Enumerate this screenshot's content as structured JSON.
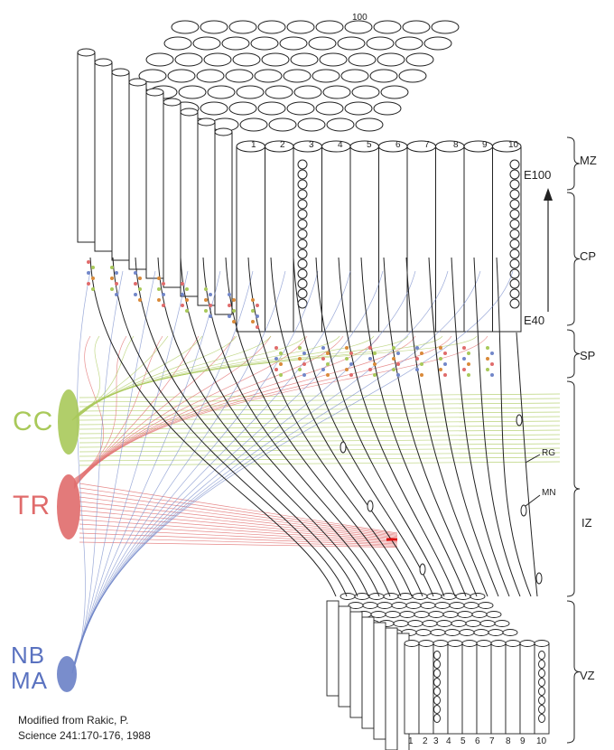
{
  "zones": [
    "MZ",
    "CP",
    "SP",
    "IZ",
    "VZ"
  ],
  "sources": {
    "cc": "CC",
    "tr": "TR",
    "nb": "NB",
    "ma": "MA"
  },
  "colors": {
    "cc": "#a9c95a",
    "tr": "#e06b6b",
    "nb": "#7287c9"
  },
  "embryonic_days": {
    "top": "E100",
    "bottom": "E40"
  },
  "cell_labels": {
    "rg": "RG",
    "mn": "MN"
  },
  "column_numbers_top": [
    "1",
    "2",
    "3",
    "4",
    "5",
    "6",
    "7",
    "8",
    "9",
    "10"
  ],
  "column_numbers_bottom": [
    "1",
    "2",
    "3",
    "4",
    "5",
    "6",
    "7",
    "8",
    "9",
    "10"
  ],
  "corner_number": "100",
  "credit": {
    "line1": "Modified from Rakic, P.",
    "line2": "Science 241:170-176, 1988"
  }
}
